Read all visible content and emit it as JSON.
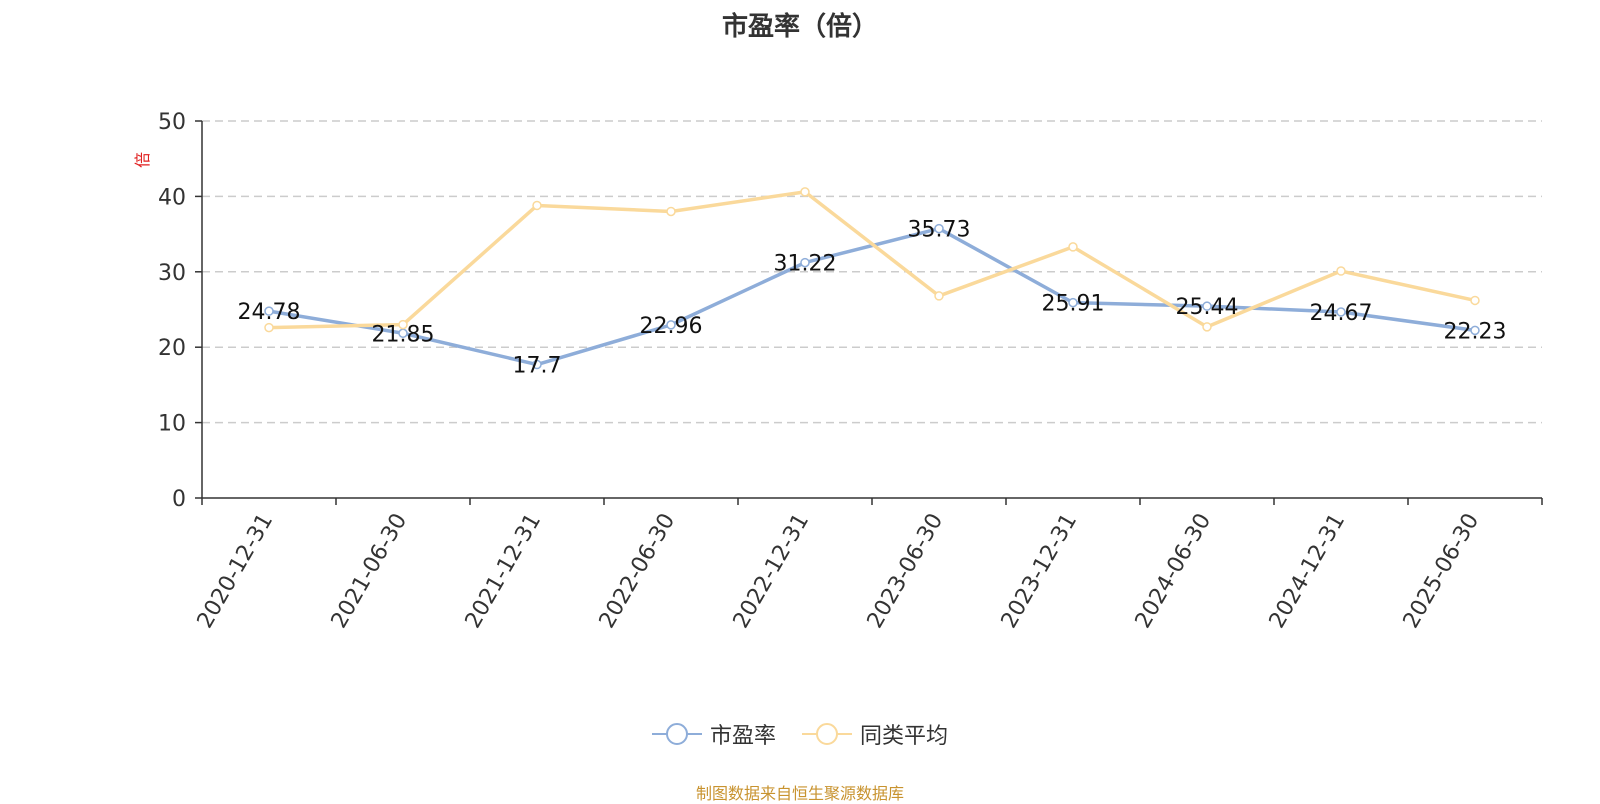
{
  "chart_data": {
    "type": "line",
    "title": "市盈率（倍）",
    "ylabel": "倍",
    "xlabel": "",
    "ylim": [
      0,
      50
    ],
    "yticks": [
      0,
      10,
      20,
      30,
      40,
      50
    ],
    "grid": true,
    "legend_position": "bottom-center",
    "categories": [
      "2020-12-31",
      "2021-06-30",
      "2021-12-31",
      "2022-06-30",
      "2022-12-31",
      "2023-06-30",
      "2023-12-31",
      "2024-06-30",
      "2024-12-31",
      "2025-06-30"
    ],
    "series": [
      {
        "name": "市盈率",
        "color": "#8eadd9",
        "values": [
          24.78,
          21.85,
          17.7,
          22.96,
          31.22,
          35.73,
          25.91,
          25.44,
          24.67,
          22.23
        ],
        "labels": [
          "24.78",
          "21.85",
          "17.7",
          "22.96",
          "31.22",
          "35.73",
          "25.91",
          "25.44",
          "24.67",
          "22.23"
        ]
      },
      {
        "name": "同类平均",
        "color": "#fad99b",
        "values": [
          22.6,
          23.0,
          38.8,
          38.0,
          40.6,
          26.8,
          33.3,
          22.7,
          30.1,
          26.2
        ]
      }
    ]
  },
  "source_note": "制图数据来自恒生聚源数据库"
}
